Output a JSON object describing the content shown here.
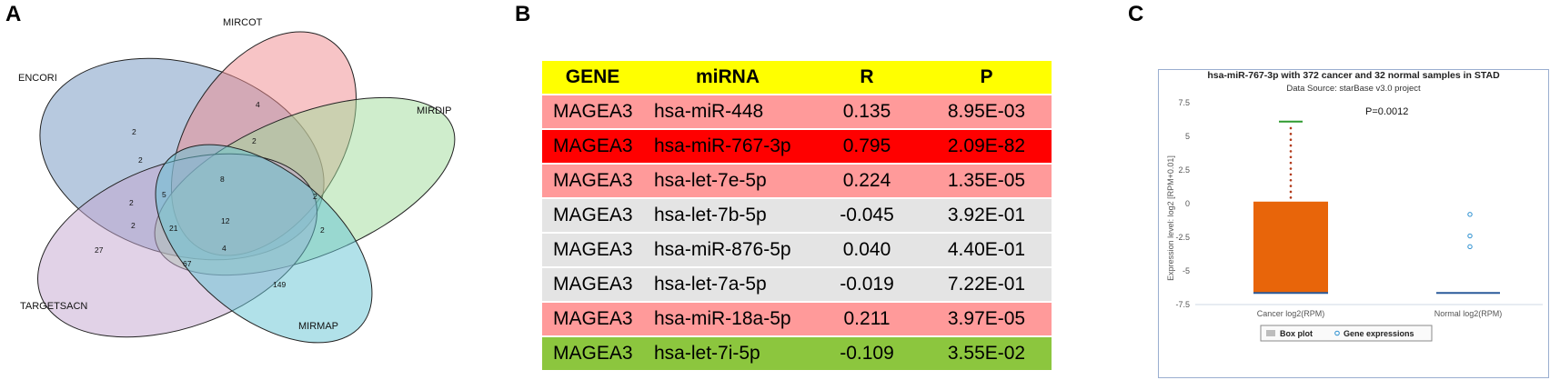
{
  "panel_letters": {
    "a": "A",
    "b": "B",
    "c": "C"
  },
  "venn": {
    "sets": {
      "mircot": "MIRCOT",
      "encori": "ENCORI",
      "mirdip": "MIRDIP",
      "targetsacn": "TARGETSACN",
      "mirmap": "MIRMAP"
    },
    "regions": [
      "4",
      "2",
      "2",
      "2",
      "8",
      "2",
      "5",
      "2",
      "2",
      "21",
      "12",
      "2",
      "27",
      "4",
      "67",
      "149"
    ],
    "colors": {
      "mircot": "#f08a8e",
      "encori": "#6f94c0",
      "mirdip": "#9fdc9a",
      "targetsacn": "#c4a6d0",
      "mirmap": "#63c3d3"
    }
  },
  "table": {
    "headers": [
      "GENE",
      "miRNA",
      "R",
      "P"
    ],
    "rows": [
      {
        "gene": "MAGEA3",
        "mirna": "hsa-miR-448",
        "r": "0.135",
        "p": "8.95E-03",
        "color": "#ff9a9a"
      },
      {
        "gene": "MAGEA3",
        "mirna": "hsa-miR-767-3p",
        "r": "0.795",
        "p": "2.09E-82",
        "color": "#ff0000"
      },
      {
        "gene": "MAGEA3",
        "mirna": "hsa-let-7e-5p",
        "r": "0.224",
        "p": "1.35E-05",
        "color": "#ff9a9a"
      },
      {
        "gene": "MAGEA3",
        "mirna": "hsa-let-7b-5p",
        "r": "-0.045",
        "p": "3.92E-01",
        "color": "#e4e4e4"
      },
      {
        "gene": "MAGEA3",
        "mirna": "hsa-miR-876-5p",
        "r": "0.040",
        "p": "4.40E-01",
        "color": "#e4e4e4"
      },
      {
        "gene": "MAGEA3",
        "mirna": "hsa-let-7a-5p",
        "r": "-0.019",
        "p": "7.22E-01",
        "color": "#e4e4e4"
      },
      {
        "gene": "MAGEA3",
        "mirna": "hsa-miR-18a-5p",
        "r": "0.211",
        "p": "3.97E-05",
        "color": "#ff9a9a"
      },
      {
        "gene": "MAGEA3",
        "mirna": "hsa-let-7i-5p",
        "r": "-0.109",
        "p": "3.55E-02",
        "color": "#8cc63e"
      }
    ]
  },
  "chart_data": {
    "type": "box",
    "title": "hsa-miR-767-3p with 372 cancer and 32 normal samples in STAD",
    "subtitle": "Data Source: starBase v3.0 project",
    "annotation": "P=0.0012",
    "ylabel": "Expression level: log2 [RPM+0.01]",
    "ylim": [
      -7.5,
      7.5
    ],
    "yticks": [
      "7.5",
      "5",
      "2.5",
      "0",
      "-2.5",
      "-5",
      "-7.5"
    ],
    "categories": [
      "Cancer log2(RPM)",
      "Normal log2(RPM)"
    ],
    "cancer": {
      "min": -6.64,
      "q1": -6.64,
      "median": -6.64,
      "q3": 0.15,
      "whisker_high": 6.1
    },
    "normal": {
      "median": -6.64,
      "outliers": [
        -0.8,
        -2.4,
        -3.2
      ]
    },
    "legend": [
      "Box plot",
      "Gene expressions"
    ],
    "colors": {
      "box": "#e8650a",
      "median": "#2a5a9a",
      "whisker": "#b23a1a",
      "max": "#2e9a2e",
      "outlier": "#2a8fd0"
    }
  }
}
